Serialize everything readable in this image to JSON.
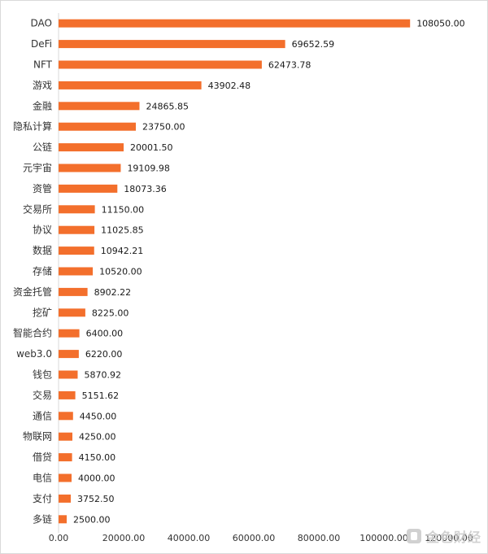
{
  "chart_data": {
    "type": "bar",
    "orientation": "horizontal",
    "categories": [
      "DAO",
      "DeFi",
      "NFT",
      "游戏",
      "金融",
      "隐私计算",
      "公链",
      "元宇宙",
      "资管",
      "交易所",
      "协议",
      "数据",
      "存储",
      "资金托管",
      "挖矿",
      "智能合约",
      "web3.0",
      "钱包",
      "交易",
      "通信",
      "物联网",
      "借贷",
      "电信",
      "支付",
      "多链"
    ],
    "values": [
      108050.0,
      69652.59,
      62473.78,
      43902.48,
      24865.85,
      23750.0,
      20001.5,
      19109.98,
      18073.36,
      11150.0,
      11025.85,
      10942.21,
      10520.0,
      8902.22,
      8225.0,
      6400.0,
      6220.0,
      5870.92,
      5151.62,
      4450.0,
      4250.0,
      4150.0,
      4000.0,
      3752.5,
      2500.0
    ],
    "value_labels": [
      "108050.00",
      "69652.59",
      "62473.78",
      "43902.48",
      "24865.85",
      "23750.00",
      "20001.50",
      "19109.98",
      "18073.36",
      "11150.00",
      "11025.85",
      "10942.21",
      "10520.00",
      "8902.22",
      "8225.00",
      "6400.00",
      "6220.00",
      "5870.92",
      "5151.62",
      "4450.00",
      "4250.00",
      "4150.00",
      "4000.00",
      "3752.50",
      "2500.00"
    ],
    "x_ticks": [
      "0.00",
      "20000.00",
      "40000.00",
      "60000.00",
      "80000.00",
      "100000.00",
      "120000.00"
    ],
    "xlim": [
      0,
      120000
    ],
    "bar_color": "#f36f2c",
    "grid": false,
    "title": "",
    "xlabel": "",
    "ylabel": ""
  },
  "watermark": {
    "text": "金色财经",
    "icon": "gold-logo-icon",
    "color": "#c9c9c9"
  }
}
